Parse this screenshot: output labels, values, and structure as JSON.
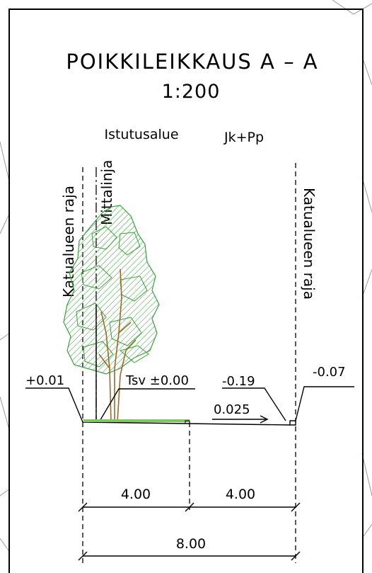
{
  "section": {
    "title": "POIKKILEIKKAUS A – A",
    "scale": "1:200"
  },
  "zones": {
    "planting": "Istutusalue",
    "walkway": "Jk+Pp"
  },
  "vertical_labels": {
    "boundary_left": "Katualueen raja",
    "survey_line": "Mittalinja",
    "boundary_right": "Katualueen raja"
  },
  "elevations": {
    "left_edge": "+0.01",
    "finished_ground": "Tsv ±0.00",
    "walkway_mid": "-0.19",
    "right_edge": "-0.07",
    "slope": "0.025"
  },
  "dimensions": {
    "planting_width": "4.00",
    "walkway_width": "4.00",
    "total_width": "8.00"
  },
  "colors": {
    "line": "#000000",
    "tree_hatch": "#3aa23a",
    "trunk": "#a0662a",
    "ground_strip": "#7dc95e"
  }
}
